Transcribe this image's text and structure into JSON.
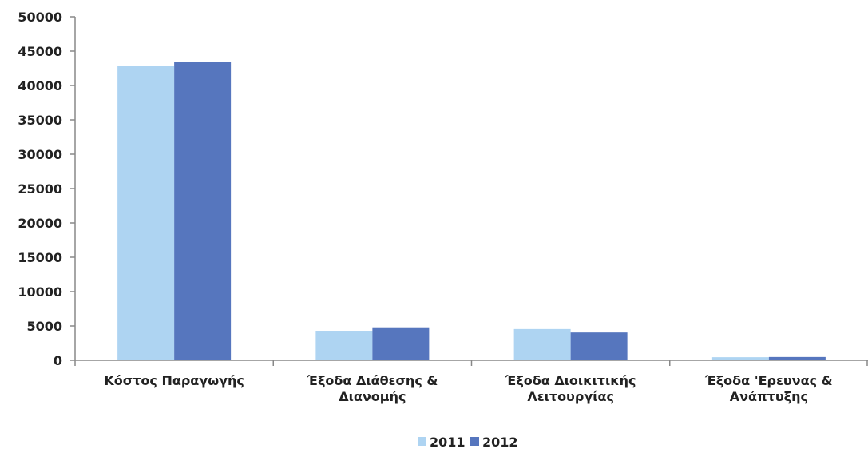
{
  "chart_data": {
    "type": "bar",
    "categories": [
      [
        "Κόστος Παραγωγής"
      ],
      [
        "Έξοδα Διάθεσης &",
        "Διανομής"
      ],
      [
        "Έξοδα Διοικιτικής",
        "Λειτουργίας"
      ],
      [
        "Έξοδα 'Ερευνας &",
        "Ανάπτυξης"
      ]
    ],
    "series": [
      {
        "name": "2011",
        "values": [
          42900,
          4300,
          4550,
          450
        ],
        "color": "#AED4F2"
      },
      {
        "name": "2012",
        "values": [
          43400,
          4800,
          4050,
          480
        ],
        "color": "#5676BE"
      }
    ],
    "ylim": [
      0,
      50000
    ],
    "yticks": [
      "0",
      "5000",
      "10000",
      "15000",
      "20000",
      "25000",
      "30000",
      "35000",
      "40000",
      "45000",
      "50000"
    ],
    "grid": false,
    "legend_position": "bottom-center"
  }
}
